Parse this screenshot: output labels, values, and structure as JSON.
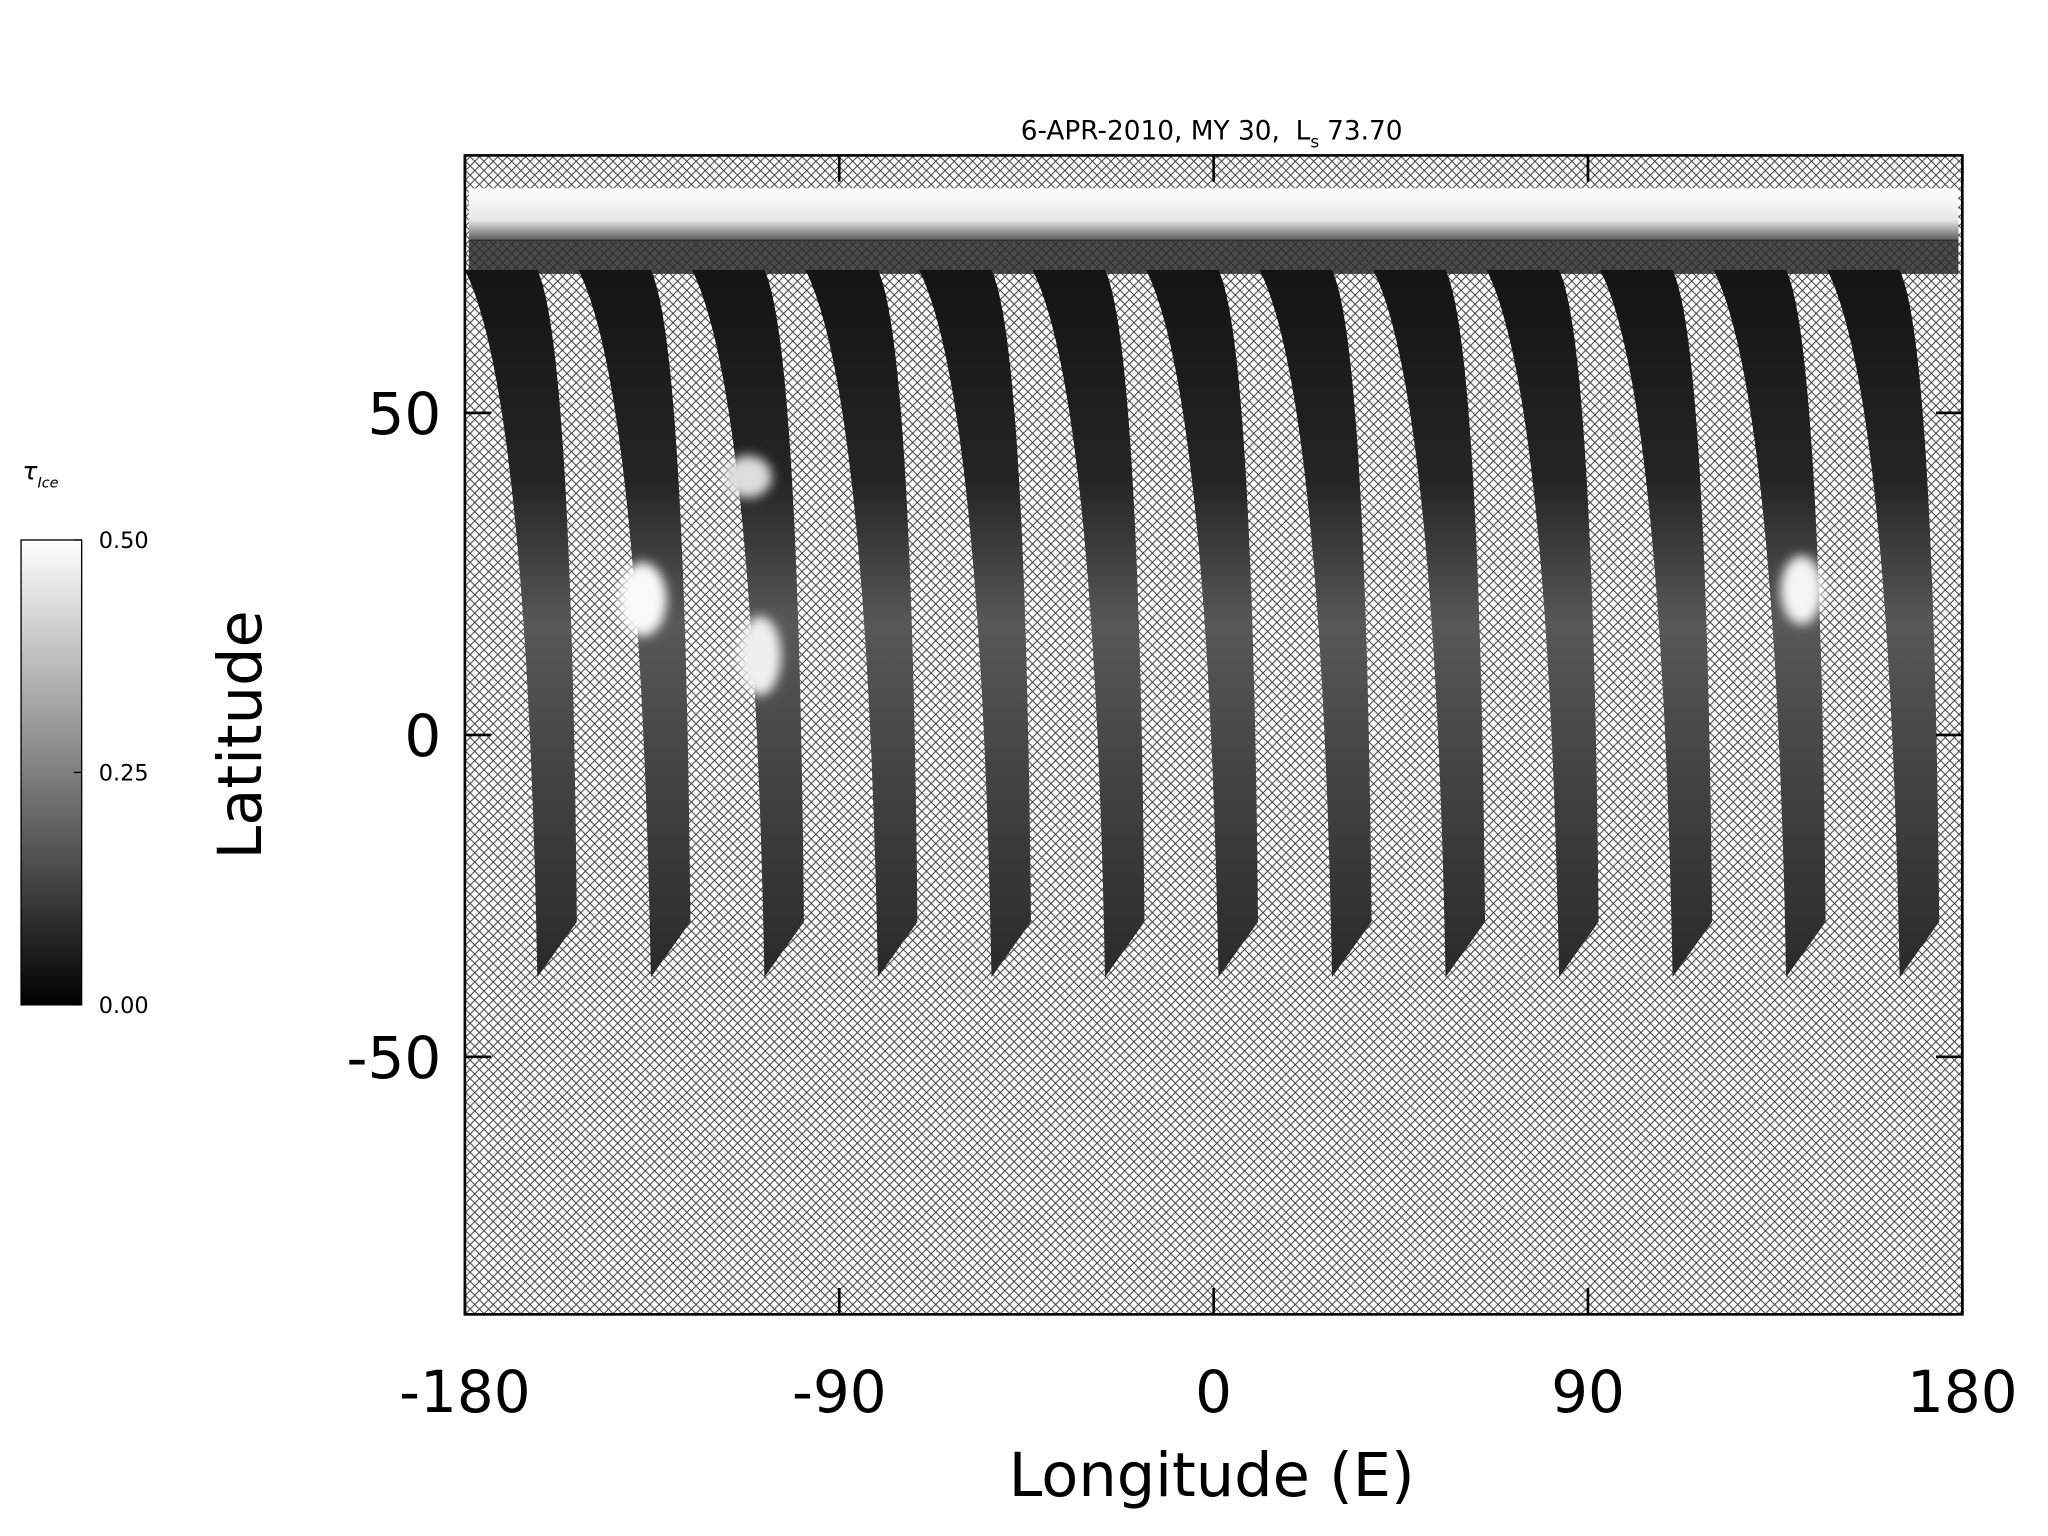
{
  "chart_data": {
    "type": "heatmap",
    "title": "6-APR-2010, MY 30,",
    "title_ls": "L",
    "title_ls_subscript": "s",
    "title_ls_value": "73.70",
    "x_label": "Longitude (E)",
    "y_label": "Latitude",
    "xlim": [
      -180,
      180
    ],
    "xticks": [
      -180,
      -90,
      0,
      90,
      180
    ],
    "ylim": [
      -90,
      90
    ],
    "yticks": [
      -50,
      0,
      50
    ],
    "colorbar": {
      "label_symbol": "τ",
      "label_subscript": "Ice",
      "lim": [
        0,
        0.5
      ],
      "ticks": [
        {
          "value": 0,
          "label": "0.00"
        },
        {
          "value": 0.25,
          "label": "0.25"
        },
        {
          "value": 0.5,
          "label": "0.50"
        }
      ]
    }
  }
}
